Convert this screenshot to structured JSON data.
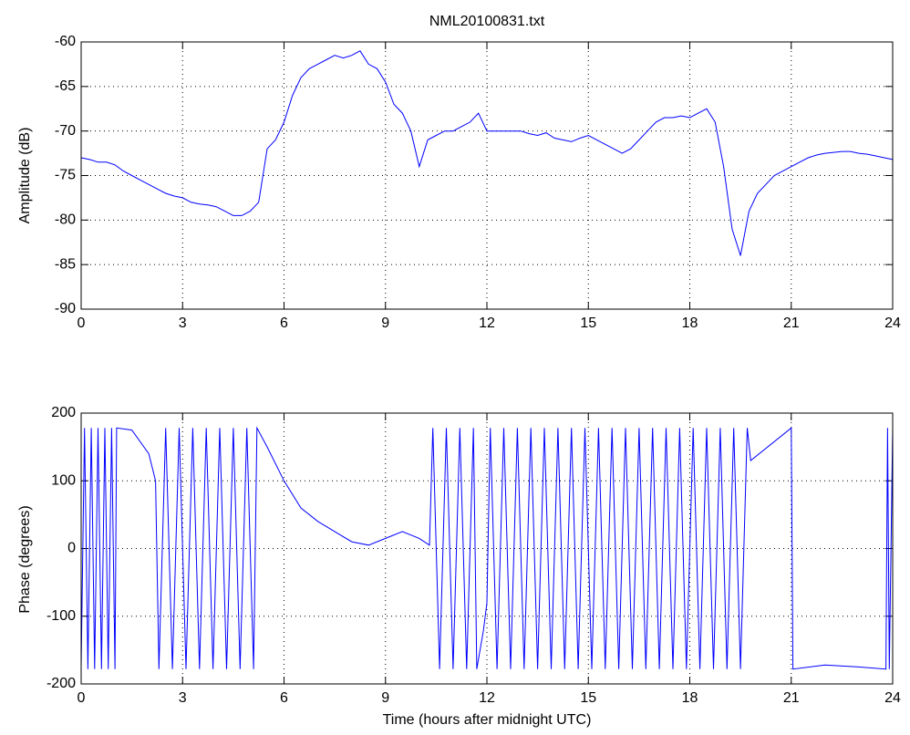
{
  "chart_data": [
    {
      "type": "line",
      "title": "NML20100831.txt",
      "ylabel": "Amplitude (dB)",
      "grid": true,
      "xlim": [
        0,
        24
      ],
      "xticks": [
        0,
        3,
        6,
        9,
        12,
        15,
        18,
        21,
        24
      ],
      "ylim": [
        -90,
        -60
      ],
      "yticks": [
        -90,
        -85,
        -80,
        -75,
        -70,
        -65,
        -60
      ],
      "x": [
        0,
        0.25,
        0.5,
        0.75,
        1,
        1.25,
        1.5,
        1.75,
        2,
        2.25,
        2.5,
        2.75,
        3,
        3.25,
        3.5,
        3.75,
        4,
        4.25,
        4.5,
        4.75,
        5,
        5.25,
        5.5,
        5.75,
        6,
        6.25,
        6.5,
        6.75,
        7,
        7.25,
        7.5,
        7.75,
        8,
        8.25,
        8.5,
        8.75,
        9,
        9.25,
        9.5,
        9.75,
        10,
        10.25,
        10.5,
        10.75,
        11,
        11.25,
        11.5,
        11.75,
        12,
        12.25,
        12.5,
        12.75,
        13,
        13.25,
        13.5,
        13.75,
        14,
        14.25,
        14.5,
        14.75,
        15,
        15.25,
        15.5,
        15.75,
        16,
        16.25,
        16.5,
        16.75,
        17,
        17.25,
        17.5,
        17.75,
        18,
        18.25,
        18.5,
        18.75,
        19,
        19.25,
        19.5,
        19.75,
        20,
        20.25,
        20.5,
        20.75,
        21,
        21.25,
        21.5,
        21.75,
        22,
        22.25,
        22.5,
        22.75,
        23,
        23.25,
        23.5,
        23.75,
        24
      ],
      "series": [
        {
          "name": "Amplitude",
          "color": "#0000ff",
          "values": [
            -73,
            -73.2,
            -73.5,
            -73.5,
            -73.8,
            -74.5,
            -75,
            -75.5,
            -76,
            -76.5,
            -77,
            -77.3,
            -77.5,
            -78,
            -78.2,
            -78.3,
            -78.5,
            -79,
            -79.5,
            -79.5,
            -79,
            -78,
            -72,
            -71,
            -69,
            -66,
            -64,
            -63,
            -62.5,
            -62,
            -61.5,
            -61.8,
            -61.5,
            -61,
            -62.5,
            -63,
            -64.5,
            -67,
            -68,
            -70,
            -74,
            -71,
            -70.5,
            -70,
            -70,
            -69.5,
            -69,
            -68,
            -70,
            -70,
            -70,
            -70,
            -70,
            -70.3,
            -70.5,
            -70.2,
            -70.8,
            -71,
            -71.2,
            -70.8,
            -70.5,
            -71,
            -71.5,
            -72,
            -72.5,
            -72,
            -71,
            -70,
            -69,
            -68.5,
            -68.5,
            -68.3,
            -68.5,
            -68,
            -67.5,
            -69,
            -74,
            -81,
            -84,
            -79,
            -77,
            -76,
            -75,
            -74.5,
            -74,
            -73.5,
            -73,
            -72.7,
            -72.5,
            -72.4,
            -72.3,
            -72.3,
            -72.5,
            -72.6,
            -72.8,
            -73,
            -73.2
          ]
        }
      ]
    },
    {
      "type": "line",
      "xlabel": "Time (hours after midnight UTC)",
      "ylabel": "Phase (degrees)",
      "grid": true,
      "xlim": [
        0,
        24
      ],
      "xticks": [
        0,
        3,
        6,
        9,
        12,
        15,
        18,
        21,
        24
      ],
      "ylim": [
        -200,
        200
      ],
      "yticks": [
        -200,
        -100,
        0,
        100,
        200
      ],
      "x": [
        0,
        0.1,
        0.2,
        0.3,
        0.4,
        0.5,
        0.6,
        0.7,
        0.8,
        0.9,
        1.0,
        1.05,
        1.5,
        2.0,
        2.2,
        2.3,
        2.5,
        2.7,
        2.9,
        3.1,
        3.3,
        3.5,
        3.7,
        3.9,
        4.1,
        4.3,
        4.5,
        4.7,
        4.9,
        5.1,
        5.2,
        5.5,
        6,
        6.5,
        7,
        7.5,
        8,
        8.5,
        9,
        9.5,
        10,
        10.3,
        10.4,
        10.6,
        10.8,
        11.0,
        11.2,
        11.4,
        11.6,
        11.7,
        11.9,
        12.0,
        12.1,
        12.3,
        12.5,
        12.7,
        12.9,
        13.1,
        13.3,
        13.5,
        13.7,
        13.9,
        14.1,
        14.3,
        14.5,
        14.7,
        14.9,
        15.1,
        15.3,
        15.5,
        15.7,
        15.9,
        16.1,
        16.3,
        16.5,
        16.7,
        16.9,
        17.1,
        17.3,
        17.5,
        17.7,
        17.9,
        18.1,
        18.3,
        18.5,
        18.7,
        18.9,
        19.1,
        19.3,
        19.5,
        19.7,
        19.8,
        21,
        21.05,
        22,
        23,
        23.8,
        23.85,
        23.9,
        24
      ],
      "series": [
        {
          "name": "Phase",
          "color": "#0000ff",
          "values": [
            -175,
            178,
            -178,
            178,
            -178,
            178,
            -178,
            178,
            -178,
            178,
            -178,
            178,
            175,
            140,
            100,
            -178,
            178,
            -178,
            178,
            -178,
            178,
            -178,
            178,
            -178,
            178,
            -178,
            178,
            -178,
            178,
            -178,
            178,
            150,
            100,
            60,
            40,
            25,
            10,
            5,
            15,
            25,
            15,
            5,
            178,
            -178,
            178,
            -178,
            178,
            -178,
            178,
            -178,
            -120,
            -80,
            178,
            -178,
            178,
            -178,
            178,
            -178,
            178,
            -178,
            178,
            -178,
            178,
            -178,
            178,
            -178,
            178,
            -178,
            178,
            -178,
            178,
            -178,
            178,
            -178,
            178,
            -178,
            178,
            -178,
            178,
            -178,
            178,
            -178,
            178,
            -178,
            178,
            -178,
            178,
            -178,
            178,
            -178,
            178,
            130,
            178,
            -178,
            -172,
            -175,
            -178,
            178,
            -178,
            178
          ]
        }
      ]
    }
  ]
}
